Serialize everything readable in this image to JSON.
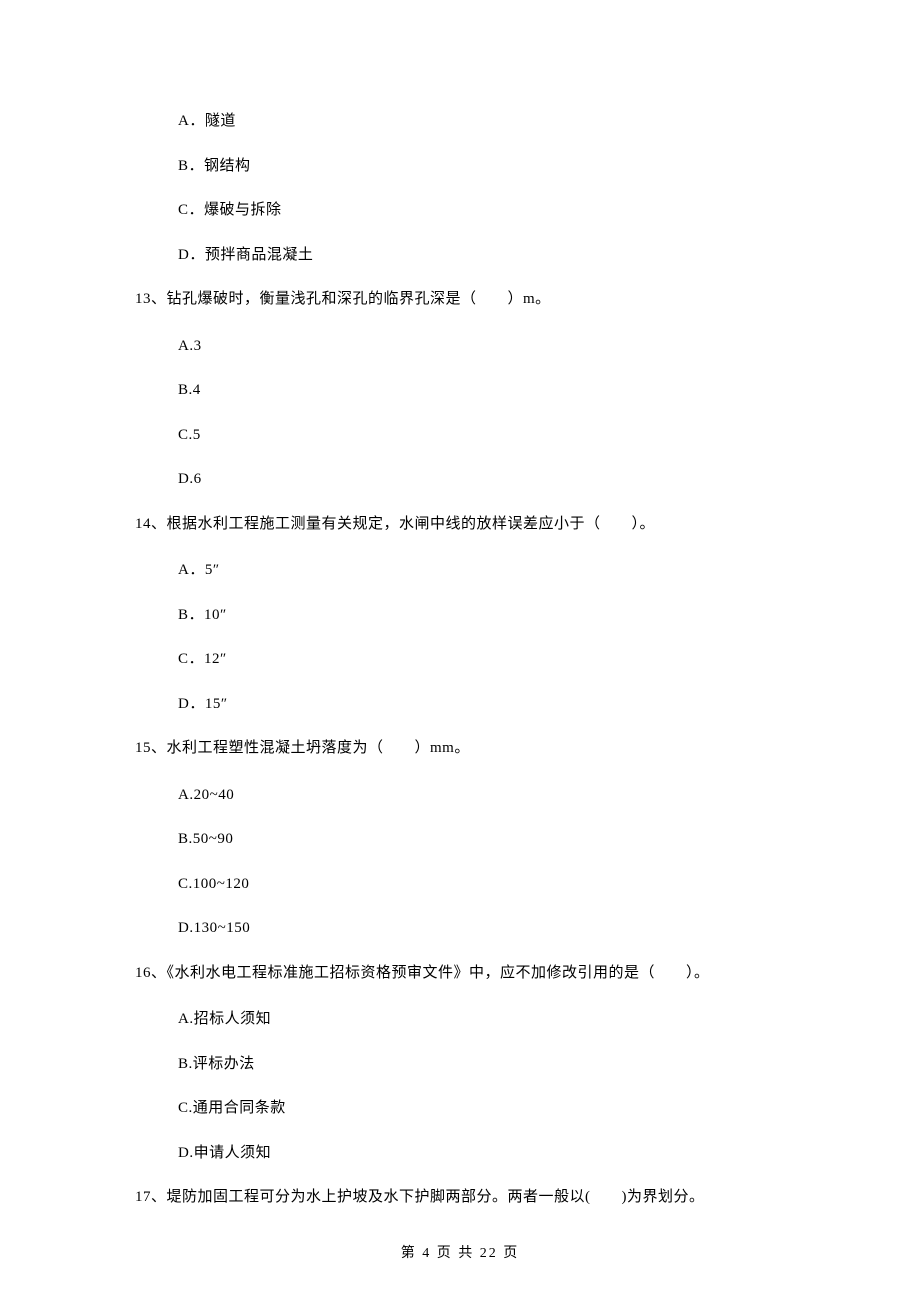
{
  "question12_options": {
    "a": "A．隧道",
    "b": "B．钢结构",
    "c": "C．爆破与拆除",
    "d": "D．预拌商品混凝土"
  },
  "question13": {
    "text": "13、钻孔爆破时，衡量浅孔和深孔的临界孔深是（　　）m。",
    "options": {
      "a": "A.3",
      "b": "B.4",
      "c": "C.5",
      "d": "D.6"
    }
  },
  "question14": {
    "text": "14、根据水利工程施工测量有关规定，水闸中线的放样误差应小于（　　）。",
    "options": {
      "a": "A．5″",
      "b": "B．10″",
      "c": "C．12″",
      "d": "D．15″"
    }
  },
  "question15": {
    "text": "15、水利工程塑性混凝土坍落度为（　　）mm。",
    "options": {
      "a": "A.20~40",
      "b": "B.50~90",
      "c": "C.100~120",
      "d": "D.130~150"
    }
  },
  "question16": {
    "text": "16、《水利水电工程标准施工招标资格预审文件》中，应不加修改引用的是（　　）。",
    "options": {
      "a": "A.招标人须知",
      "b": "B.评标办法",
      "c": "C.通用合同条款",
      "d": "D.申请人须知"
    }
  },
  "question17": {
    "text": "17、堤防加固工程可分为水上护坡及水下护脚两部分。两者一般以(　　)为界划分。"
  },
  "footer": "第 4 页 共 22 页"
}
